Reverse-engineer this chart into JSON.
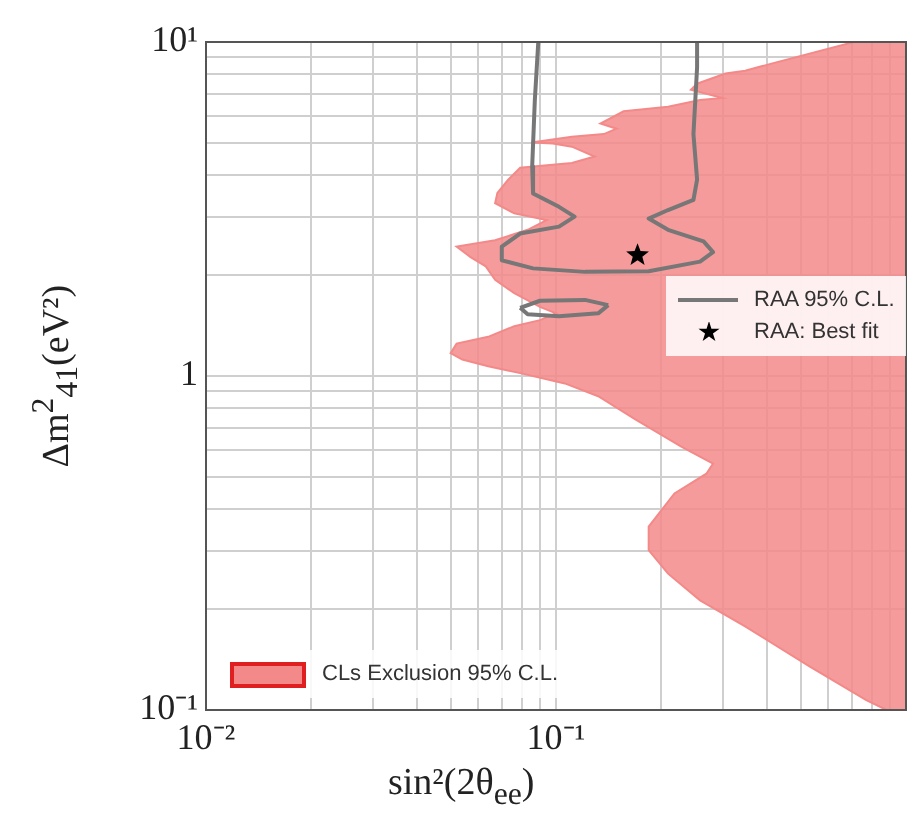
{
  "chart_data": {
    "type": "area",
    "xlabel": "sin²(2θ$_{ee}$)",
    "ylabel": "Δm$^{2}$$_{41}$(eV²)",
    "log": "xy",
    "xlim": [
      0.01,
      1
    ],
    "ylim": [
      0.1,
      10
    ],
    "xticks": [
      {
        "value": 0.01,
        "label": "10⁻²"
      },
      {
        "value": 0.02,
        "label": null
      },
      {
        "value": 0.03,
        "label": null
      },
      {
        "value": 0.04,
        "label": null
      },
      {
        "value": 0.05,
        "label": null
      },
      {
        "value": 0.06,
        "label": null
      },
      {
        "value": 0.07,
        "label": null
      },
      {
        "value": 0.08,
        "label": null
      },
      {
        "value": 0.09,
        "label": null
      },
      {
        "value": 0.1,
        "label": "10⁻¹"
      },
      {
        "value": 0.2,
        "label": null
      },
      {
        "value": 0.3,
        "label": null
      },
      {
        "value": 0.4,
        "label": null
      },
      {
        "value": 0.5,
        "label": null
      },
      {
        "value": 0.6,
        "label": null
      },
      {
        "value": 0.7,
        "label": null
      },
      {
        "value": 0.8,
        "label": null
      },
      {
        "value": 0.9,
        "label": null
      },
      {
        "value": 1,
        "label": null
      }
    ],
    "yticks": [
      {
        "value": 0.1,
        "label": "10⁻¹"
      },
      {
        "value": 0.2,
        "label": null
      },
      {
        "value": 0.3,
        "label": null
      },
      {
        "value": 0.4,
        "label": null
      },
      {
        "value": 0.5,
        "label": null
      },
      {
        "value": 0.6,
        "label": null
      },
      {
        "value": 0.7,
        "label": null
      },
      {
        "value": 0.8,
        "label": null
      },
      {
        "value": 0.9,
        "label": null
      },
      1,
      {
        "value": 2,
        "label": null
      },
      {
        "value": 3,
        "label": null
      },
      {
        "value": 4,
        "label": null
      },
      {
        "value": 5,
        "label": null
      },
      {
        "value": 6,
        "label": null
      },
      {
        "value": 7,
        "label": null
      },
      {
        "value": 8,
        "label": null
      },
      {
        "value": 9,
        "label": null
      },
      {
        "value": 10,
        "label": "10¹"
      }
    ],
    "grid": true,
    "legend": "right",
    "series": [
      {
        "name": "CLs Exclusion 95% C.L.",
        "color": "#f48989",
        "x": [
          0.71,
          0.41,
          0.347,
          0.305,
          0.253,
          0.243,
          0.269,
          0.299,
          0.258,
          0.209,
          0.156,
          0.134,
          0.149,
          0.137,
          0.111,
          0.085,
          0.098,
          0.111,
          0.129,
          0.111,
          0.079,
          0.073,
          0.068,
          0.067,
          0.076,
          0.094,
          0.083,
          0.067,
          0.052,
          0.057,
          0.063,
          0.067,
          0.076,
          0.09,
          0.1,
          0.09,
          0.076,
          0.064,
          0.052,
          0.05,
          0.054,
          0.064,
          0.079,
          0.106,
          0.132,
          0.169,
          0.228,
          0.281,
          0.269,
          0.218,
          0.184,
          0.184,
          0.209,
          0.258,
          0.347,
          0.53,
          0.77,
          0.88,
          1,
          1
        ],
        "values": [
          10,
          8.6,
          8.2,
          8.05,
          7.5,
          7.2,
          7.0,
          6.8,
          6.7,
          6.4,
          6.2,
          5.7,
          5.5,
          5.3,
          5.2,
          5.0,
          4.97,
          4.86,
          4.54,
          4.34,
          4.2,
          3.87,
          3.53,
          3.29,
          3.07,
          2.93,
          2.74,
          2.55,
          2.44,
          2.27,
          2.13,
          1.94,
          1.77,
          1.61,
          1.54,
          1.47,
          1.41,
          1.31,
          1.25,
          1.17,
          1.12,
          1.07,
          1.02,
          0.95,
          0.87,
          0.74,
          0.615,
          0.547,
          0.51,
          0.445,
          0.354,
          0.301,
          0.256,
          0.213,
          0.178,
          0.135,
          0.107,
          0.1,
          0.1,
          10
        ]
      },
      {
        "name": "RAA 95% C.L.",
        "type": "line",
        "color": "#777777",
        "x": [
          0.089,
          0.087,
          0.0855,
          0.086,
          0.102,
          0.113,
          0.102,
          0.079,
          0.07,
          0.07,
          0.086,
          0.121,
          0.184,
          0.258,
          0.281,
          0.264,
          0.209,
          0.184,
          0.209,
          0.247,
          0.253,
          0.247,
          0.253,
          0.253
        ],
        "values": [
          10,
          6.7,
          4.24,
          3.52,
          3.21,
          3.0,
          2.8,
          2.67,
          2.44,
          2.22,
          2.1,
          2.05,
          2.06,
          2.2,
          2.35,
          2.53,
          2.74,
          2.96,
          3.14,
          3.37,
          3.87,
          5.3,
          8.4,
          10
        ]
      },
      {
        "type": "line",
        "color": "#777777",
        "x": [
          0.079,
          0.09,
          0.121,
          0.141
        ],
        "values": [
          1.6,
          1.68,
          1.69,
          1.63
        ]
      },
      {
        "type": "line",
        "color": "#777777",
        "x": [
          0.079,
          0.083,
          0.102,
          0.132,
          0.141
        ],
        "values": [
          1.6,
          1.53,
          1.51,
          1.54,
          1.63
        ]
      },
      {
        "name": "RAA: Best fit",
        "type": "scatter",
        "marker": "star",
        "color": "#000000",
        "x": [
          0.171
        ],
        "values": [
          2.3
        ]
      }
    ]
  }
}
